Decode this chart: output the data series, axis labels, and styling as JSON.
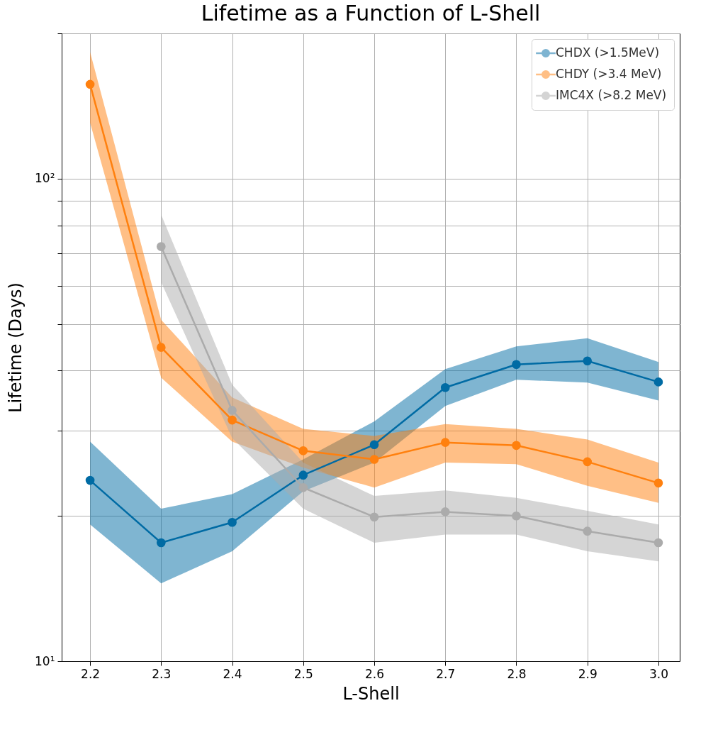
{
  "chart_data": {
    "type": "line",
    "title": "Lifetime as a Function of L-Shell",
    "xlabel": "L-Shell",
    "ylabel": "Lifetime (Days)",
    "x": [
      2.2,
      2.3,
      2.4,
      2.5,
      2.6,
      2.7,
      2.8,
      2.9,
      3.0
    ],
    "series": [
      {
        "name": "CHDX (>1.5MeV)",
        "color": "#006ba4",
        "values": [
          23.7,
          17.6,
          19.4,
          24.3,
          28.1,
          36.9,
          41.2,
          41.9,
          37.9
        ],
        "lower": [
          19.2,
          14.5,
          16.9,
          22.5,
          25.8,
          33.8,
          38.3,
          37.8,
          34.7
        ],
        "upper": [
          28.5,
          20.7,
          22.2,
          26.2,
          31.4,
          40.3,
          44.9,
          46.7,
          41.7
        ]
      },
      {
        "name": "CHDY (>3.4 MeV)",
        "color": "#ff800e",
        "values": [
          156.8,
          44.7,
          31.6,
          27.3,
          26.2,
          28.4,
          28.0,
          25.9,
          23.4
        ],
        "lower": [
          130.6,
          38.7,
          28.5,
          25.2,
          22.9,
          25.8,
          25.6,
          23.1,
          21.3
        ],
        "upper": [
          183,
          51.0,
          35.2,
          30.3,
          29.3,
          31.0,
          30.3,
          28.8,
          25.8
        ]
      },
      {
        "name": "IMC4X (>8.2 MeV)",
        "color": "#ababab",
        "values": [
          null,
          72.3,
          33.1,
          22.9,
          19.9,
          20.4,
          20.0,
          18.6,
          17.6
        ],
        "lower": [
          null,
          61.0,
          29.0,
          20.7,
          17.6,
          18.3,
          18.3,
          16.9,
          16.1
        ],
        "upper": [
          null,
          84.2,
          37.4,
          25.8,
          22.0,
          22.6,
          21.8,
          20.5,
          19.2
        ]
      }
    ],
    "log": true,
    "xlim": [
      2.16,
      3.03
    ],
    "ylim": [
      10,
      200
    ],
    "xticks": [
      {
        "value": 2.2,
        "label": "2.2"
      },
      {
        "value": 2.3,
        "label": "2.3"
      },
      {
        "value": 2.4,
        "label": "2.4"
      },
      {
        "value": 2.5,
        "label": "2.5"
      },
      {
        "value": 2.6,
        "label": "2.6"
      },
      {
        "value": 2.7,
        "label": "2.7"
      },
      {
        "value": 2.8,
        "label": "2.8"
      },
      {
        "value": 2.9,
        "label": "2.9"
      },
      {
        "value": 3.0,
        "label": "3.0"
      }
    ],
    "yticks": [
      {
        "value": 10,
        "label": "10¹"
      },
      {
        "value": 20,
        "label": null
      },
      {
        "value": 30,
        "label": null
      },
      {
        "value": 40,
        "label": null
      },
      {
        "value": 50,
        "label": null
      },
      {
        "value": 60,
        "label": null
      },
      {
        "value": 70,
        "label": null
      },
      {
        "value": 80,
        "label": null
      },
      {
        "value": 90,
        "label": null
      },
      {
        "value": 100,
        "label": "10²"
      },
      {
        "value": 200,
        "label": null
      }
    ],
    "grid": true,
    "legend": "top right",
    "marker": "circle",
    "line_style": "solid"
  }
}
